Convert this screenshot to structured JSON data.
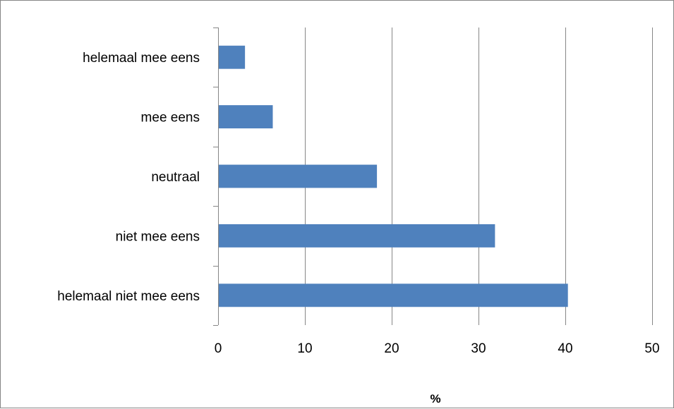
{
  "chart_data": {
    "type": "bar",
    "orientation": "horizontal",
    "categories": [
      "helemaal mee eens",
      "mee eens",
      "neutraal",
      "niet mee eens",
      "helemaal niet mee eens"
    ],
    "values": [
      3.1,
      6.3,
      18.3,
      31.9,
      40.3
    ],
    "xlabel": "%",
    "ylabel": "",
    "xlim": [
      0,
      50
    ],
    "xticks": [
      0,
      10,
      20,
      30,
      40,
      50
    ],
    "grid": "vertical",
    "legend": "none",
    "bar_color": "#4F81BD",
    "grid_color": "#868686"
  }
}
